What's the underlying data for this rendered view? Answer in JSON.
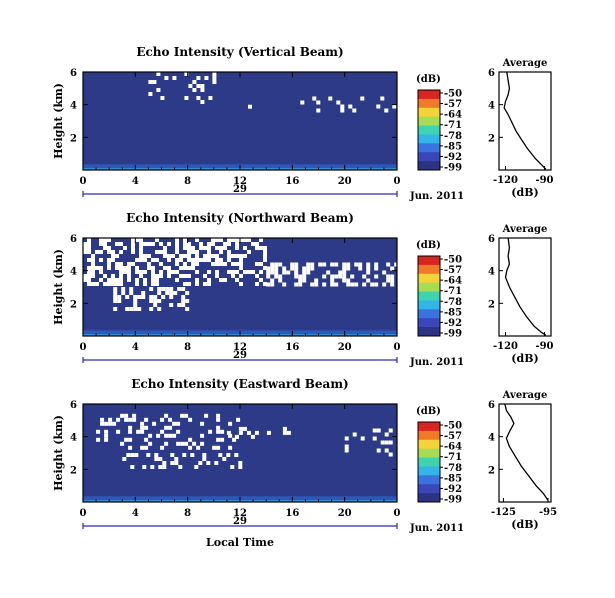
{
  "colors": {
    "background": "#2d3a88",
    "speckle": "#ffffff",
    "near_ground": "#2f6fe0",
    "colorbar": [
      "#d7251f",
      "#f07a2a",
      "#f3d23a",
      "#a7dc55",
      "#3fd3b0",
      "#35b4e8",
      "#3b73de",
      "#3b46b8",
      "#2c3381"
    ]
  },
  "shared": {
    "x_ticks": [
      "0",
      "4",
      "8",
      "12",
      "16",
      "20",
      "0"
    ],
    "y_ticks": [
      "6",
      "4",
      "2"
    ],
    "y_label": "Height (km)",
    "day_label": "29",
    "month_label": "Jun. 2011",
    "unit_label": "(dB)",
    "colorbar_ticks": [
      "-50",
      "-57",
      "-64",
      "-71",
      "-78",
      "-85",
      "-92",
      "-99"
    ],
    "avg_title": "Average",
    "avg_y_ticks": [
      "6",
      "4",
      "2"
    ],
    "avg_xlabel": "(dB)",
    "x_axis_label": "Local Time"
  },
  "chart_data": [
    {
      "type": "heatmap",
      "title": "Echo Intensity (Vertical Beam)",
      "xlabel": "",
      "ylabel": "Height (km)",
      "x_range": [
        0,
        24
      ],
      "y_range": [
        0,
        6
      ],
      "x_unit": "Local Time (h), Jun. 29 2011",
      "colorbar": {
        "label": "(dB)",
        "range": [
          -99,
          -50
        ]
      },
      "speckle_density": 0.14,
      "speckle_zones": [
        [
          5,
          10,
          4.2,
          6
        ],
        [
          12,
          14,
          3.5,
          4
        ],
        [
          16,
          24,
          3.5,
          4.5
        ]
      ],
      "average_profile": {
        "title": "Average",
        "x_ticks": [
          "-120",
          "-90"
        ],
        "xlabel": "(dB)",
        "x_range": [
          -125,
          -85
        ],
        "y_range": [
          0,
          6
        ],
        "points": [
          [
            -119,
            6
          ],
          [
            -118,
            5.5
          ],
          [
            -117,
            5.0
          ],
          [
            -118,
            4.6
          ],
          [
            -120,
            4.2
          ],
          [
            -121,
            3.8
          ],
          [
            -118,
            3.4
          ],
          [
            -115,
            2.9
          ],
          [
            -112,
            2.4
          ],
          [
            -108,
            1.9
          ],
          [
            -103,
            1.3
          ],
          [
            -97,
            0.7
          ],
          [
            -92,
            0.3
          ],
          [
            -89,
            0.05
          ]
        ]
      }
    },
    {
      "type": "heatmap",
      "title": "Echo Intensity (Northward Beam)",
      "xlabel": "",
      "ylabel": "Height (km)",
      "x_range": [
        0,
        24
      ],
      "y_range": [
        0,
        6
      ],
      "x_unit": "Local Time (h), Jun. 29 2011",
      "colorbar": {
        "label": "(dB)",
        "range": [
          -99,
          -50
        ]
      },
      "speckle_density": 0.45,
      "speckle_zones": [
        [
          0,
          14,
          3.0,
          6
        ],
        [
          14,
          24,
          3.0,
          4.5
        ],
        [
          2,
          8,
          1.5,
          3
        ]
      ],
      "average_profile": {
        "title": "Average",
        "x_ticks": [
          "-120",
          "-90"
        ],
        "xlabel": "(dB)",
        "x_range": [
          -125,
          -85
        ],
        "y_range": [
          0,
          6
        ],
        "points": [
          [
            -118,
            6
          ],
          [
            -117,
            5.4
          ],
          [
            -118,
            4.9
          ],
          [
            -117,
            4.4
          ],
          [
            -119,
            4.0
          ],
          [
            -120,
            3.6
          ],
          [
            -117,
            3.0
          ],
          [
            -113,
            2.4
          ],
          [
            -109,
            1.8
          ],
          [
            -104,
            1.2
          ],
          [
            -98,
            0.6
          ],
          [
            -92,
            0.2
          ],
          [
            -89,
            0.05
          ]
        ]
      }
    },
    {
      "type": "heatmap",
      "title": "Echo Intensity (Eastward Beam)",
      "xlabel": "Local Time",
      "ylabel": "Height (km)",
      "x_range": [
        0,
        24
      ],
      "y_range": [
        0,
        6
      ],
      "x_unit": "Local Time (h), Jun. 29 2011",
      "colorbar": {
        "label": "(dB)",
        "range": [
          -99,
          -50
        ]
      },
      "speckle_density": 0.3,
      "speckle_zones": [
        [
          1,
          12,
          3.3,
          5.4
        ],
        [
          11,
          16,
          4.0,
          4.6
        ],
        [
          3,
          12,
          2.0,
          3.0
        ],
        [
          20,
          24,
          2.8,
          4.5
        ]
      ],
      "average_profile": {
        "title": "Average",
        "x_ticks": [
          "-125",
          "-95"
        ],
        "xlabel": "(dB)",
        "x_range": [
          -128,
          -93
        ],
        "y_range": [
          0,
          6
        ],
        "points": [
          [
            -124,
            6
          ],
          [
            -123,
            5.6
          ],
          [
            -120,
            5.2
          ],
          [
            -118,
            4.8
          ],
          [
            -121,
            4.3
          ],
          [
            -123,
            3.9
          ],
          [
            -121,
            3.4
          ],
          [
            -117,
            2.8
          ],
          [
            -113,
            2.2
          ],
          [
            -108,
            1.6
          ],
          [
            -103,
            1.0
          ],
          [
            -98,
            0.5
          ],
          [
            -95,
            0.1
          ]
        ]
      }
    }
  ]
}
